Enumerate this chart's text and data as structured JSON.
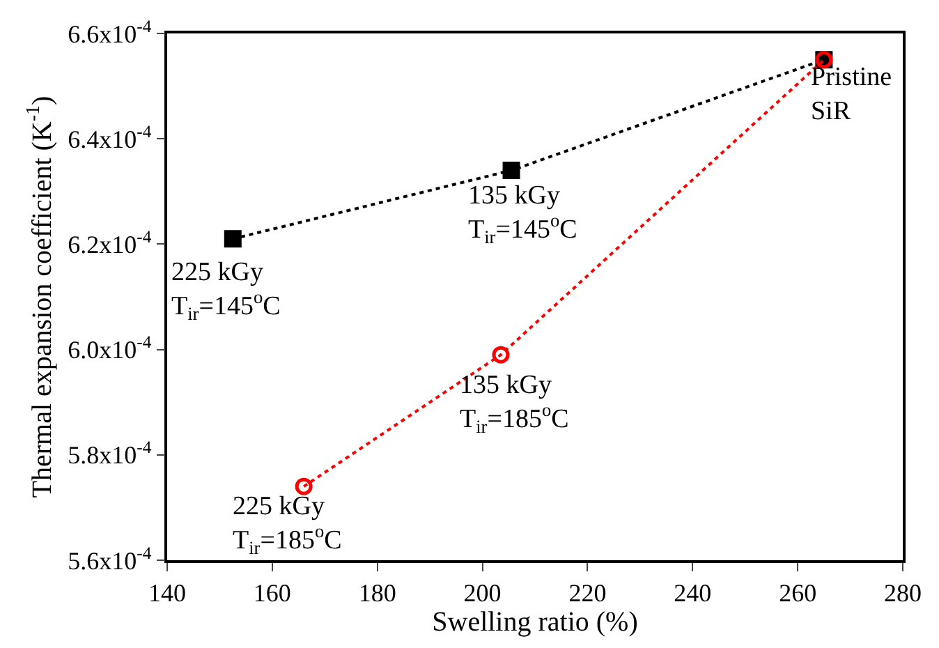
{
  "chart_data": {
    "type": "line",
    "xlabel": "Swelling ratio (%)",
    "ylabel": "Thermal expansion coefficient (K$^{-1}$)",
    "series": [
      {
        "color": "#000000",
        "marker": "square",
        "line_style": "dotted",
        "x": [
          152.5,
          205.5,
          265
        ],
        "values": [
          0.000621,
          0.000634,
          0.000655
        ]
      },
      {
        "color": "#ff0000",
        "marker": "circle",
        "line_style": "dotted",
        "x": [
          166,
          203.5,
          265
        ],
        "values": [
          0.000574,
          0.000599,
          0.000655
        ]
      }
    ],
    "xlim": [
      140,
      280
    ],
    "xticks": [
      140,
      160,
      180,
      200,
      220,
      240,
      260,
      280
    ],
    "ylim": [
      0.00056,
      0.00066
    ],
    "yticks": [
      {
        "value": 0.00056,
        "label": "5.6x10$^{-4}$"
      },
      {
        "value": 0.00058,
        "label": "5.8x10$^{-4}$"
      },
      {
        "value": 0.0006,
        "label": "6.0x10$^{-4}$"
      },
      {
        "value": 0.00062,
        "label": "6.2x10$^{-4}$"
      },
      {
        "value": 0.00064,
        "label": "6.4x10$^{-4}$"
      },
      {
        "value": 0.00066,
        "label": "6.6x10$^{-4}$"
      }
    ],
    "annotations": [
      {
        "text": "225 kGy\nT$_{ir}$=145$^{o}$C",
        "x": 152.5,
        "y": 0.000621
      },
      {
        "text": "135 kGy\nT$_{ir}$=145$^{o}$C",
        "x": 205.5,
        "y": 0.000634
      },
      {
        "text": "Pristine\nSiR",
        "x": 265,
        "y": 0.000655
      },
      {
        "text": "135 kGy\nT$_{ir}$=185$^{o}$C",
        "x": 203.5,
        "y": 0.000599
      },
      {
        "text": "225 kGy\nT$_{ir}$=185$^{o}$C",
        "x": 166,
        "y": 0.000574
      }
    ]
  }
}
